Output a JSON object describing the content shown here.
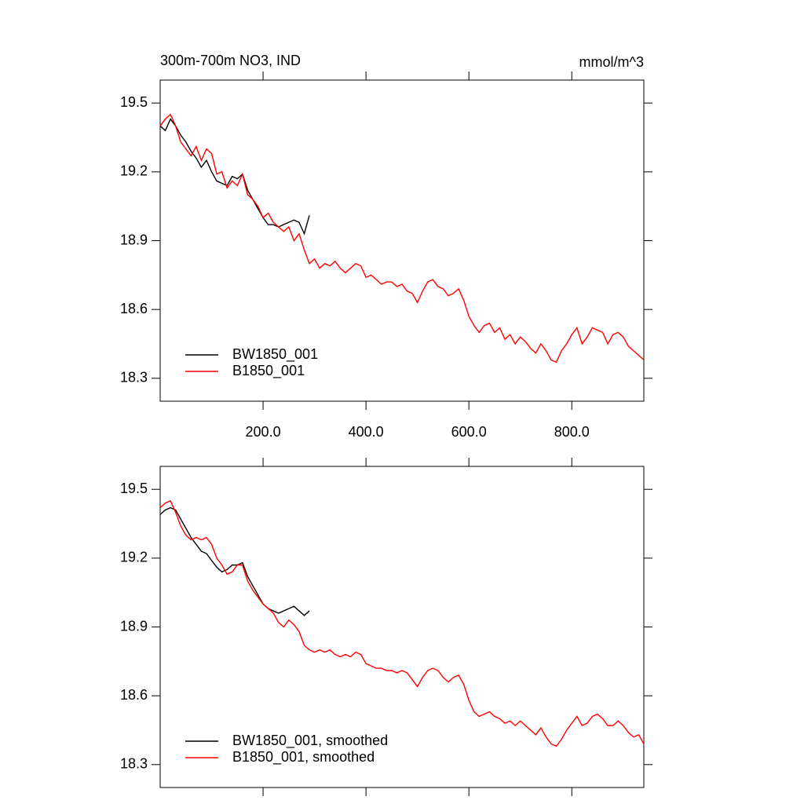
{
  "chart_data": [
    {
      "type": "line",
      "title": "300m-700m NO3, IND",
      "units": "mmol/m^3",
      "legend": "lower left",
      "x": [
        0,
        10,
        20,
        30,
        40,
        50,
        60,
        70,
        80,
        90,
        100,
        110,
        120,
        130,
        140,
        150,
        160,
        170,
        180,
        190,
        200,
        210,
        220,
        230,
        240,
        250,
        260,
        270,
        280,
        290,
        300,
        310,
        320,
        330,
        340,
        350,
        360,
        370,
        380,
        390,
        400,
        410,
        420,
        430,
        440,
        450,
        460,
        470,
        480,
        490,
        500,
        510,
        520,
        530,
        540,
        550,
        560,
        570,
        580,
        590,
        600,
        610,
        620,
        630,
        640,
        650,
        660,
        670,
        680,
        690,
        700,
        710,
        720,
        730,
        740,
        750,
        760,
        770,
        780,
        790,
        800,
        810,
        820,
        830,
        840,
        850,
        860,
        870,
        880,
        890,
        900,
        910,
        920,
        930,
        940
      ],
      "xlim": [
        0,
        940
      ],
      "ylim": [
        18.2,
        19.6
      ],
      "xticks": [
        {
          "value": 200,
          "label": "200.0"
        },
        {
          "value": 400,
          "label": "400.0"
        },
        {
          "value": 600,
          "label": "600.0"
        },
        {
          "value": 800,
          "label": "800.0"
        }
      ],
      "yticks": [
        18.3,
        18.6,
        18.9,
        19.2,
        19.5
      ],
      "series": [
        {
          "name": "BW1850_001",
          "color": "#000000",
          "values": [
            19.4,
            19.38,
            19.43,
            19.4,
            19.36,
            19.33,
            19.29,
            19.26,
            19.22,
            19.25,
            19.2,
            19.16,
            19.15,
            19.14,
            19.18,
            19.17,
            19.19,
            19.12,
            19.08,
            19.04,
            19.0,
            18.97,
            18.97,
            18.96,
            18.97,
            18.98,
            18.99,
            18.98,
            18.93,
            19.01,
            null,
            null,
            null,
            null,
            null,
            null,
            null,
            null,
            null,
            null,
            null,
            null,
            null,
            null,
            null,
            null,
            null,
            null,
            null,
            null,
            null,
            null,
            null,
            null,
            null,
            null,
            null,
            null,
            null,
            null,
            null,
            null,
            null,
            null,
            null,
            null,
            null,
            null,
            null,
            null,
            null,
            null,
            null,
            null,
            null,
            null,
            null,
            null,
            null,
            null,
            null,
            null,
            null,
            null,
            null,
            null,
            null,
            null,
            null,
            null,
            null,
            null,
            null,
            null,
            null
          ]
        },
        {
          "name": "B1850_001",
          "color": "#ff0000",
          "values": [
            19.4,
            19.43,
            19.45,
            19.4,
            19.33,
            19.3,
            19.27,
            19.31,
            19.25,
            19.3,
            19.28,
            19.19,
            19.2,
            19.13,
            19.16,
            19.14,
            19.19,
            19.1,
            19.08,
            19.05,
            19.0,
            19.02,
            18.98,
            18.96,
            18.94,
            18.96,
            18.9,
            18.93,
            18.86,
            18.8,
            18.82,
            18.78,
            18.8,
            18.79,
            18.81,
            18.78,
            18.76,
            18.78,
            18.8,
            18.79,
            18.74,
            18.75,
            18.73,
            18.71,
            18.72,
            18.72,
            18.7,
            18.71,
            18.68,
            18.67,
            18.63,
            18.68,
            18.72,
            18.73,
            18.7,
            18.69,
            18.66,
            18.67,
            18.69,
            18.64,
            18.57,
            18.53,
            18.5,
            18.53,
            18.54,
            18.5,
            18.52,
            18.47,
            18.49,
            18.45,
            18.48,
            18.46,
            18.43,
            18.41,
            18.45,
            18.42,
            18.38,
            18.37,
            18.42,
            18.45,
            18.49,
            18.52,
            18.45,
            18.48,
            18.52,
            18.51,
            18.5,
            18.45,
            18.49,
            18.5,
            18.48,
            18.44,
            18.42,
            18.4,
            18.38
          ]
        }
      ]
    },
    {
      "type": "line",
      "legend": "lower left",
      "x": [
        0,
        10,
        20,
        30,
        40,
        50,
        60,
        70,
        80,
        90,
        100,
        110,
        120,
        130,
        140,
        150,
        160,
        170,
        180,
        190,
        200,
        210,
        220,
        230,
        240,
        250,
        260,
        270,
        280,
        290,
        300,
        310,
        320,
        330,
        340,
        350,
        360,
        370,
        380,
        390,
        400,
        410,
        420,
        430,
        440,
        450,
        460,
        470,
        480,
        490,
        500,
        510,
        520,
        530,
        540,
        550,
        560,
        570,
        580,
        590,
        600,
        610,
        620,
        630,
        640,
        650,
        660,
        670,
        680,
        690,
        700,
        710,
        720,
        730,
        740,
        750,
        760,
        770,
        780,
        790,
        800,
        810,
        820,
        830,
        840,
        850,
        860,
        870,
        880,
        890,
        900,
        910,
        920,
        930,
        940
      ],
      "xlim": [
        0,
        940
      ],
      "ylim": [
        18.2,
        19.6
      ],
      "xticks": [
        200,
        400,
        600,
        800
      ],
      "yticks": [
        18.3,
        18.6,
        18.9,
        19.2,
        19.5
      ],
      "series": [
        {
          "name": "BW1850_001, smoothed",
          "color": "#000000",
          "values": [
            19.39,
            19.41,
            19.42,
            19.41,
            19.37,
            19.33,
            19.29,
            19.26,
            19.23,
            19.22,
            19.19,
            19.16,
            19.14,
            19.15,
            19.17,
            19.17,
            19.18,
            19.12,
            19.08,
            19.04,
            19.0,
            18.98,
            18.97,
            18.96,
            18.97,
            18.98,
            18.99,
            18.97,
            18.95,
            18.97,
            null,
            null,
            null,
            null,
            null,
            null,
            null,
            null,
            null,
            null,
            null,
            null,
            null,
            null,
            null,
            null,
            null,
            null,
            null,
            null,
            null,
            null,
            null,
            null,
            null,
            null,
            null,
            null,
            null,
            null,
            null,
            null,
            null,
            null,
            null,
            null,
            null,
            null,
            null,
            null,
            null,
            null,
            null,
            null,
            null,
            null,
            null,
            null,
            null,
            null,
            null,
            null,
            null,
            null,
            null,
            null,
            null,
            null,
            null,
            null,
            null,
            null,
            null,
            null,
            null
          ]
        },
        {
          "name": "B1850_001, smoothed",
          "color": "#ff0000",
          "values": [
            19.42,
            19.44,
            19.45,
            19.4,
            19.34,
            19.3,
            19.28,
            19.29,
            19.28,
            19.29,
            19.26,
            19.2,
            19.17,
            19.13,
            19.14,
            19.17,
            19.17,
            19.1,
            19.06,
            19.03,
            19.0,
            18.98,
            18.96,
            18.92,
            18.9,
            18.93,
            18.91,
            18.88,
            18.82,
            18.8,
            18.79,
            18.8,
            18.79,
            18.8,
            18.78,
            18.77,
            18.78,
            18.77,
            18.79,
            18.78,
            18.74,
            18.73,
            18.72,
            18.72,
            18.71,
            18.71,
            18.7,
            18.71,
            18.7,
            18.67,
            18.64,
            18.68,
            18.71,
            18.72,
            18.71,
            18.68,
            18.66,
            18.68,
            18.69,
            18.65,
            18.58,
            18.53,
            18.51,
            18.52,
            18.53,
            18.51,
            18.5,
            18.48,
            18.49,
            18.47,
            18.49,
            18.47,
            18.45,
            18.43,
            18.46,
            18.42,
            18.39,
            18.38,
            18.41,
            18.45,
            18.48,
            18.51,
            18.47,
            18.48,
            18.51,
            18.52,
            18.5,
            18.47,
            18.47,
            18.49,
            18.47,
            18.44,
            18.42,
            18.43,
            18.39
          ]
        }
      ]
    }
  ]
}
